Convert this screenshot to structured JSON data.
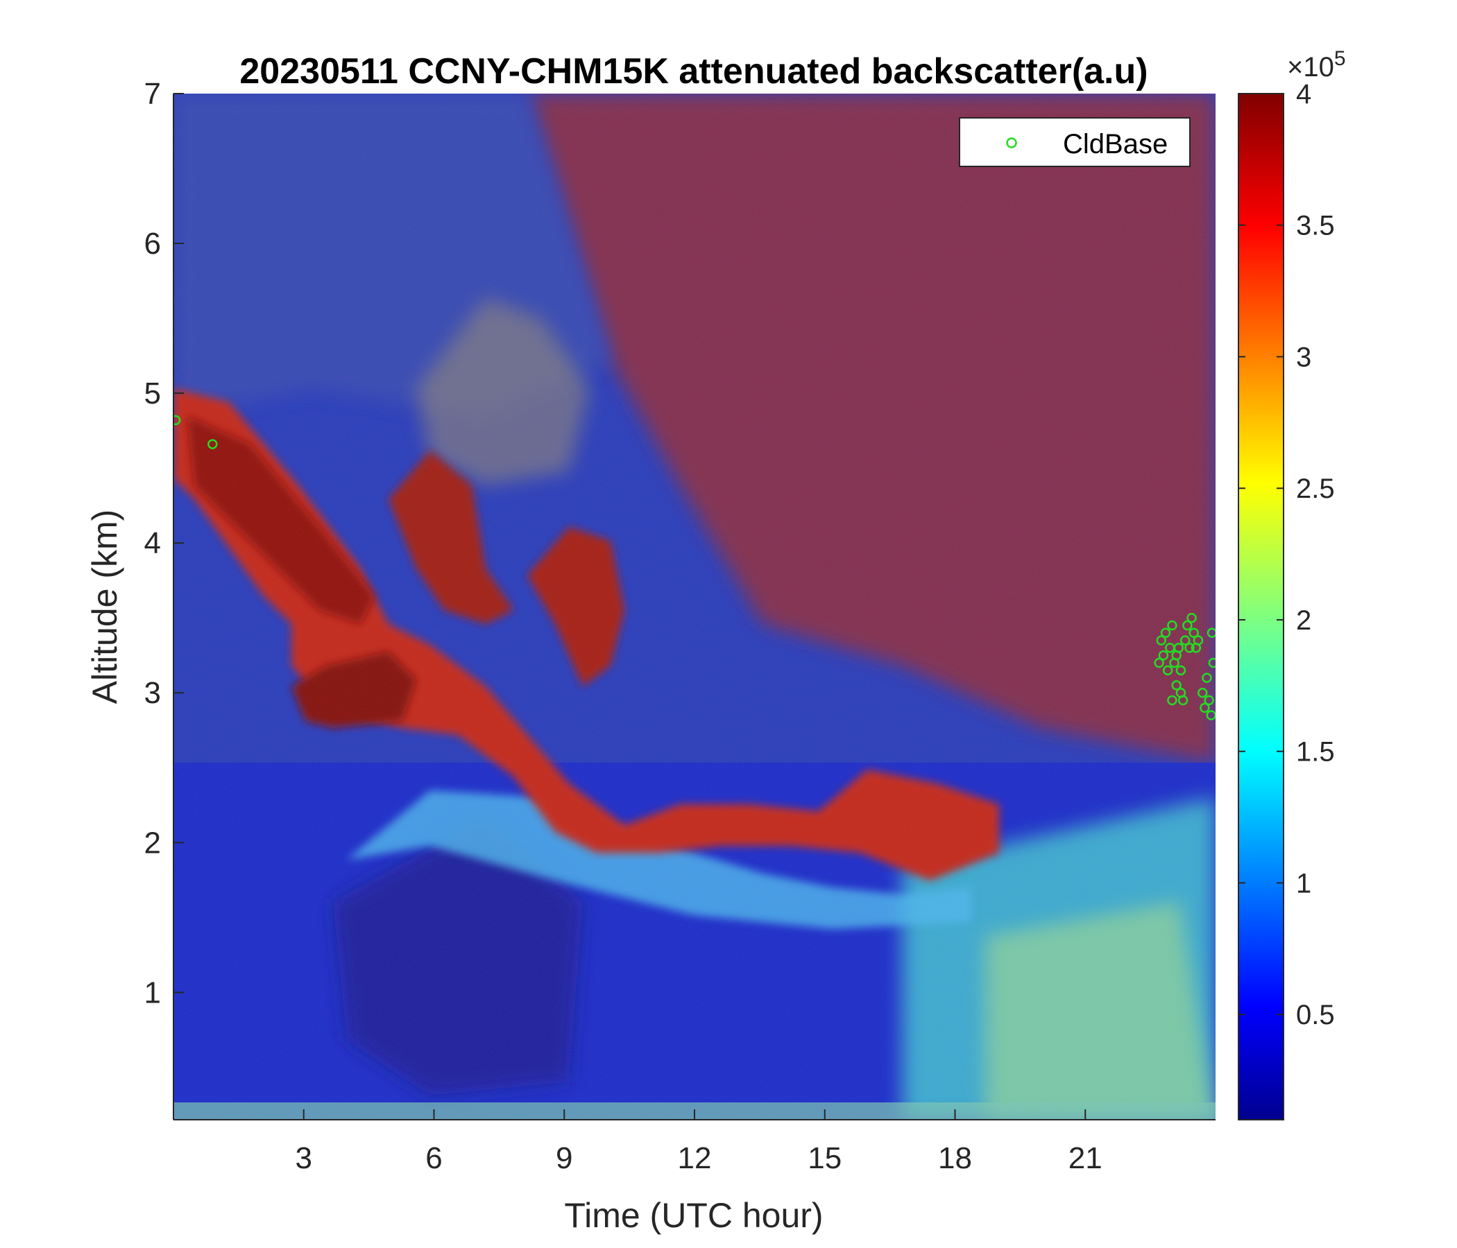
{
  "chart_data": {
    "type": "heatmap",
    "title": "20230511 CCNY-CHM15K attenuated backscatter(a.u)",
    "xlabel": "Time (UTC hour)",
    "ylabel": "Altitude (km)",
    "xlim": [
      0,
      24
    ],
    "ylim": [
      0.15,
      7
    ],
    "xticks": [
      3,
      6,
      9,
      12,
      15,
      18,
      21
    ],
    "yticks": [
      1,
      2,
      3,
      4,
      5,
      6,
      7
    ],
    "colorbar": {
      "colormap": "jet",
      "range": [
        0.1,
        4
      ],
      "ticks": [
        0.5,
        1,
        1.5,
        2,
        2.5,
        3,
        3.5,
        4
      ],
      "tick_labels": [
        "0.5",
        "1",
        "1.5",
        "2",
        "2.5",
        "3",
        "3.5",
        "4"
      ],
      "exponent_prefix": "×10",
      "exponent_power": "5"
    },
    "legend": {
      "position": "top-right",
      "entries": [
        "CldBase"
      ]
    },
    "series": [
      {
        "name": "CldBase",
        "marker": "circle",
        "color": "#22dd22",
        "points": [
          [
            0.05,
            4.82
          ],
          [
            0.9,
            4.66
          ],
          [
            22.75,
            3.35
          ],
          [
            22.8,
            3.25
          ],
          [
            22.85,
            3.4
          ],
          [
            22.9,
            3.15
          ],
          [
            22.95,
            3.3
          ],
          [
            23.0,
            3.45
          ],
          [
            23.05,
            3.2
          ],
          [
            23.1,
            3.05
          ],
          [
            23.15,
            3.3
          ],
          [
            23.2,
            3.0
          ],
          [
            23.25,
            2.95
          ],
          [
            23.3,
            3.35
          ],
          [
            23.35,
            3.45
          ],
          [
            23.4,
            3.3
          ],
          [
            23.45,
            3.5
          ],
          [
            23.5,
            3.4
          ],
          [
            23.55,
            3.3
          ],
          [
            23.6,
            3.35
          ],
          [
            23.7,
            3.0
          ],
          [
            23.75,
            2.9
          ],
          [
            23.8,
            3.1
          ],
          [
            23.85,
            2.95
          ],
          [
            23.9,
            2.85
          ],
          [
            23.95,
            3.2
          ],
          [
            22.7,
            3.2
          ],
          [
            23.0,
            2.95
          ],
          [
            23.1,
            3.25
          ],
          [
            23.2,
            3.15
          ],
          [
            23.92,
            3.4
          ]
        ]
      }
    ],
    "features": [
      {
        "description": "aerosol layer",
        "altitude_km": [
          2.0,
          3.0
        ],
        "time_hr": [
          3,
          19
        ],
        "value_approx": 4
      }
    ]
  }
}
